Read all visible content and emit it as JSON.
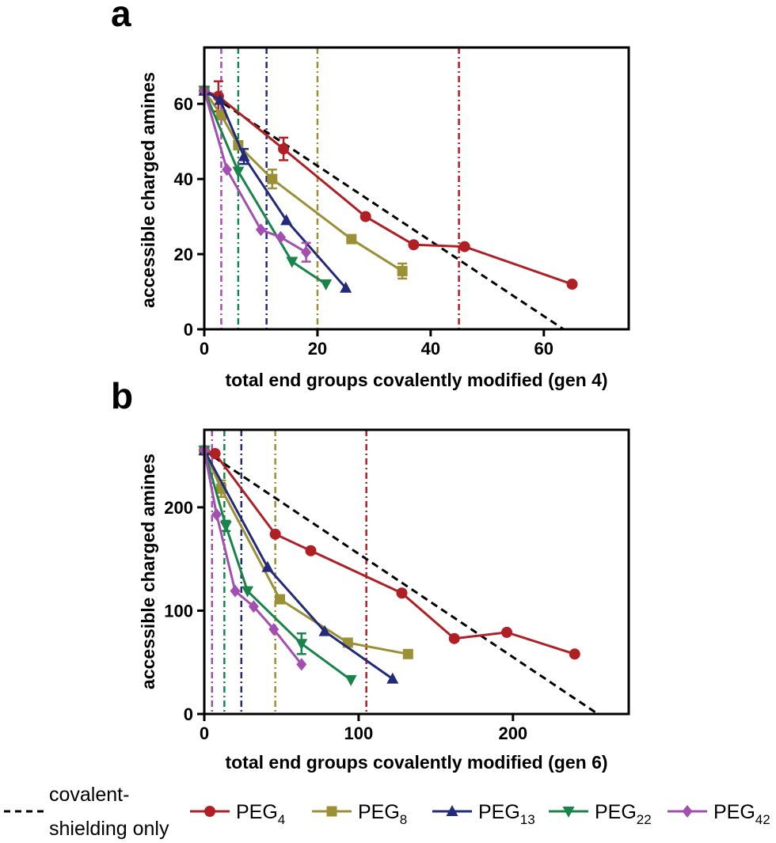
{
  "legend": {
    "shielding_line1": "covalent-",
    "shielding_line2": "shielding only",
    "items": [
      {
        "base": "PEG",
        "sub": "4",
        "color": "#b01f24",
        "marker": "circle"
      },
      {
        "base": "PEG",
        "sub": "8",
        "color": "#9b9035",
        "marker": "square"
      },
      {
        "base": "PEG",
        "sub": "13",
        "color": "#232a7a",
        "marker": "triangle-up"
      },
      {
        "base": "PEG",
        "sub": "22",
        "color": "#18844a",
        "marker": "triangle-down"
      },
      {
        "base": "PEG",
        "sub": "42",
        "color": "#a34eb0",
        "marker": "diamond"
      }
    ]
  },
  "chart_data": [
    {
      "panel": "a",
      "type": "line",
      "xlabel": "total end groups covalently modified (gen 4)",
      "ylabel": "accessible charged amines",
      "xlim": [
        0,
        75
      ],
      "ylim": [
        0,
        75
      ],
      "xticks": [
        0,
        20,
        40,
        60
      ],
      "yticks": [
        0,
        20,
        40,
        60
      ],
      "shielding_line": {
        "x": [
          0,
          63.5
        ],
        "y": [
          63.5,
          0
        ]
      },
      "vlines": [
        {
          "series": "PEG4",
          "x": 45
        },
        {
          "series": "PEG8",
          "x": 20
        },
        {
          "series": "PEG13",
          "x": 11
        },
        {
          "series": "PEG22",
          "x": 6
        },
        {
          "series": "PEG42",
          "x": 3
        }
      ],
      "series": [
        {
          "name": "PEG4",
          "x": [
            0,
            2.5,
            14,
            28.5,
            37,
            46,
            65
          ],
          "y": [
            63.5,
            62,
            48,
            30,
            22.5,
            22,
            12
          ],
          "err": [
            0,
            4,
            3,
            0,
            0,
            0,
            0
          ]
        },
        {
          "name": "PEG8",
          "x": [
            0,
            3,
            6,
            12,
            26,
            35
          ],
          "y": [
            63.5,
            57,
            49,
            40,
            24,
            15.5
          ],
          "err": [
            0,
            0,
            0,
            2.5,
            0,
            2
          ]
        },
        {
          "name": "PEG13",
          "x": [
            0,
            2.8,
            7,
            14.5,
            25
          ],
          "y": [
            63.5,
            61,
            46,
            29,
            11
          ],
          "err": [
            0,
            0,
            2,
            0,
            0
          ]
        },
        {
          "name": "PEG22",
          "x": [
            0,
            6,
            15.5,
            21.5
          ],
          "y": [
            63.5,
            42,
            18,
            12
          ],
          "err": [
            0,
            0,
            0,
            0
          ]
        },
        {
          "name": "PEG42",
          "x": [
            0,
            4,
            10,
            13.5,
            18
          ],
          "y": [
            63.5,
            42.5,
            26.5,
            24.5,
            20.5
          ],
          "err": [
            0,
            0,
            0,
            0,
            2.5
          ]
        }
      ]
    },
    {
      "panel": "b",
      "type": "line",
      "xlabel": "total end groups covalently modified (gen 6)",
      "ylabel": "accessible charged amines",
      "xlim": [
        0,
        275
      ],
      "ylim": [
        0,
        275
      ],
      "xticks": [
        0,
        100,
        200
      ],
      "yticks": [
        0,
        100,
        200
      ],
      "shielding_line": {
        "x": [
          0,
          255
        ],
        "y": [
          255,
          0
        ]
      },
      "vlines": [
        {
          "series": "PEG4",
          "x": 105
        },
        {
          "series": "PEG8",
          "x": 46
        },
        {
          "series": "PEG13",
          "x": 24
        },
        {
          "series": "PEG22",
          "x": 13
        },
        {
          "series": "PEG42",
          "x": 5
        }
      ],
      "series": [
        {
          "name": "PEG4",
          "x": [
            0,
            7,
            46,
            69,
            128,
            162,
            196,
            240
          ],
          "y": [
            255,
            252,
            174,
            158,
            117,
            73,
            79,
            58
          ],
          "err": [
            0,
            0,
            0,
            0,
            0,
            0,
            0,
            0
          ]
        },
        {
          "name": "PEG8",
          "x": [
            0,
            11,
            49,
            93,
            132
          ],
          "y": [
            255,
            218,
            111,
            69,
            58
          ],
          "err": [
            0,
            8,
            0,
            0,
            0
          ]
        },
        {
          "name": "PEG13",
          "x": [
            0,
            41,
            78,
            122
          ],
          "y": [
            255,
            142,
            80,
            34
          ],
          "err": [
            0,
            0,
            0,
            0
          ]
        },
        {
          "name": "PEG22",
          "x": [
            0,
            14,
            28,
            63,
            95
          ],
          "y": [
            255,
            182,
            119,
            68,
            33
          ],
          "err": [
            0,
            5,
            0,
            10,
            0
          ]
        },
        {
          "name": "PEG42",
          "x": [
            0,
            8,
            20,
            32,
            45,
            63
          ],
          "y": [
            255,
            193,
            119,
            104,
            82,
            48
          ],
          "err": [
            0,
            0,
            0,
            0,
            0,
            0
          ]
        }
      ]
    }
  ]
}
